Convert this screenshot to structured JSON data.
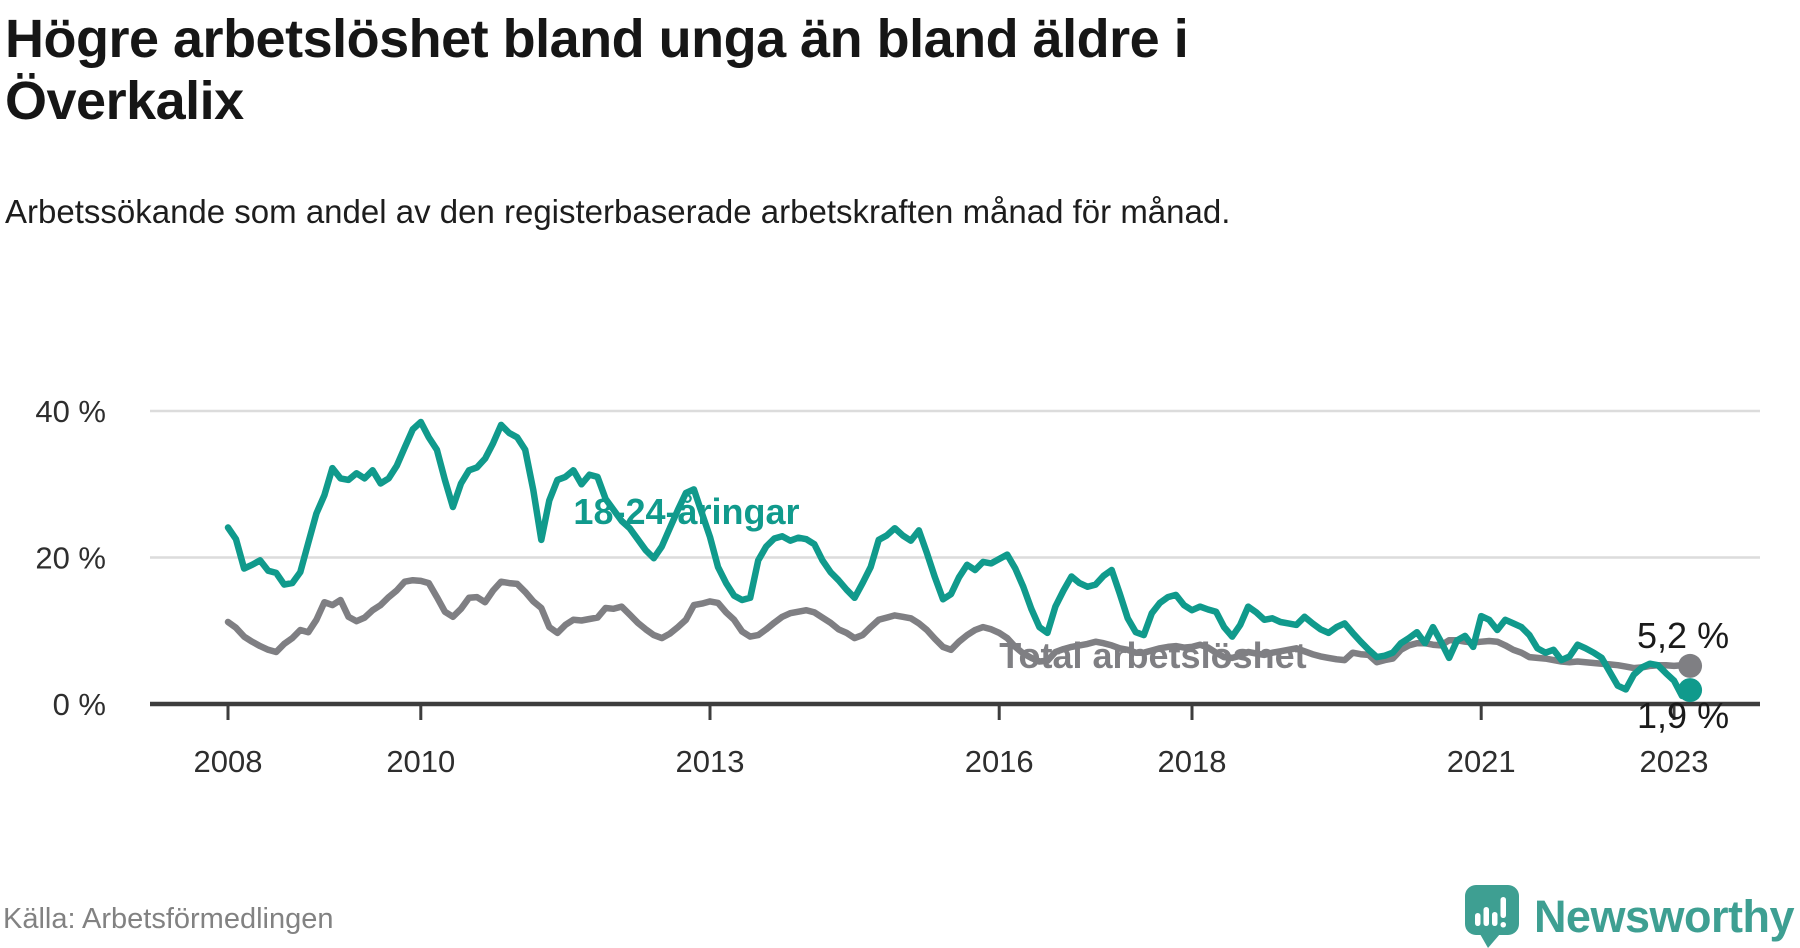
{
  "title": "Högre arbetslöshet bland unga än bland äldre i Överkalix",
  "subtitle": "Arbetssökande som andel av den registerbaserade arbetskraften månad för månad.",
  "source": {
    "text": "Källa: Arbetsförmedlingen"
  },
  "brand": {
    "name": "Newsworthy",
    "color": "#3e9f92"
  },
  "chart_data": {
    "type": "line",
    "unit": "%",
    "frequency": "monthly",
    "x_start": "2008-01",
    "x_end": "2023-03",
    "ylim": [
      0,
      44
    ],
    "grid": "horizontal",
    "legend": "inline-labels",
    "y_axis": {
      "ticks": [
        {
          "value": 40,
          "label": "40 %"
        },
        {
          "value": 20,
          "label": "20 %"
        },
        {
          "value": 0,
          "label": "0 %"
        }
      ]
    },
    "x_axis": {
      "start_year": 2008,
      "ticks": [
        {
          "year": 2008,
          "label": "2008"
        },
        {
          "year": 2010,
          "label": "2010"
        },
        {
          "year": 2013,
          "label": "2013"
        },
        {
          "year": 2016,
          "label": "2016"
        },
        {
          "year": 2018,
          "label": "2018"
        },
        {
          "year": 2021,
          "label": "2021"
        },
        {
          "year": 2023,
          "label": "2023"
        }
      ]
    },
    "series": [
      {
        "id": "18-24",
        "name": "18-24-åringar",
        "color": "#109a8c",
        "end_label": "1,9 %",
        "end_label_dy": 38,
        "values": [
          24.1,
          22.5,
          18.5,
          19.0,
          19.6,
          18.2,
          17.9,
          16.3,
          16.5,
          18.0,
          22.0,
          26.0,
          28.5,
          32.2,
          30.8,
          30.6,
          31.5,
          30.8,
          31.9,
          30.1,
          30.8,
          32.5,
          35.0,
          37.5,
          38.5,
          36.4,
          34.7,
          30.6,
          26.9,
          30.1,
          31.9,
          32.3,
          33.5,
          35.6,
          38.1,
          37.0,
          36.4,
          34.7,
          29.2,
          22.4,
          27.8,
          30.6,
          31.0,
          31.9,
          30.0,
          31.3,
          31.0,
          28.0,
          26.5,
          25.0,
          24.0,
          22.5,
          21.0,
          19.9,
          21.5,
          24.0,
          26.5,
          28.8,
          29.3,
          26.0,
          22.8,
          18.7,
          16.5,
          14.8,
          14.2,
          14.5,
          19.6,
          21.5,
          22.6,
          22.9,
          22.3,
          22.7,
          22.5,
          21.8,
          19.6,
          18.0,
          16.9,
          15.6,
          14.5,
          16.5,
          18.7,
          22.4,
          23.0,
          24.0,
          23.0,
          22.3,
          23.7,
          20.6,
          17.3,
          14.3,
          15.0,
          17.3,
          19.0,
          18.3,
          19.4,
          19.2,
          19.8,
          20.4,
          18.5,
          16.0,
          13.0,
          10.5,
          9.7,
          13.3,
          15.5,
          17.4,
          16.5,
          16.0,
          16.3,
          17.5,
          18.3,
          15.1,
          11.7,
          9.8,
          9.4,
          12.4,
          13.8,
          14.6,
          14.9,
          13.5,
          12.8,
          13.3,
          12.9,
          12.6,
          10.5,
          9.2,
          10.8,
          13.3,
          12.5,
          11.5,
          11.7,
          11.2,
          11.0,
          10.8,
          11.9,
          11.0,
          10.2,
          9.7,
          10.5,
          11.0,
          9.7,
          8.5,
          7.4,
          6.4,
          6.6,
          7.0,
          8.3,
          9.0,
          9.8,
          8.3,
          10.5,
          8.5,
          6.3,
          8.7,
          9.3,
          7.8,
          12.0,
          11.5,
          10.1,
          11.5,
          11.0,
          10.5,
          9.4,
          7.6,
          7.0,
          7.4,
          6.0,
          6.5,
          8.1,
          7.6,
          7.0,
          6.3,
          4.4,
          2.5,
          2.0,
          4.0,
          5.0,
          5.5,
          5.3,
          4.2,
          3.2,
          1.1,
          1.9
        ]
      },
      {
        "id": "total",
        "name": "Total arbetslöshet",
        "color": "#7f7f83",
        "end_label": "5,2 %",
        "end_label_dy": -18,
        "values": [
          11.2,
          10.4,
          9.2,
          8.5,
          7.9,
          7.4,
          7.1,
          8.2,
          9.0,
          10.1,
          9.8,
          11.5,
          13.9,
          13.5,
          14.2,
          11.9,
          11.3,
          11.8,
          12.8,
          13.5,
          14.6,
          15.5,
          16.7,
          16.9,
          16.8,
          16.5,
          14.6,
          12.6,
          11.9,
          13.0,
          14.5,
          14.6,
          13.9,
          15.5,
          16.7,
          16.5,
          16.4,
          15.3,
          14.0,
          13.1,
          10.5,
          9.7,
          10.8,
          11.5,
          11.4,
          11.6,
          11.8,
          13.1,
          13.0,
          13.3,
          12.2,
          11.1,
          10.2,
          9.4,
          9.0,
          9.6,
          10.5,
          11.5,
          13.5,
          13.7,
          14.0,
          13.8,
          12.5,
          11.5,
          9.9,
          9.2,
          9.4,
          10.2,
          11.1,
          11.9,
          12.4,
          12.6,
          12.8,
          12.5,
          11.8,
          11.1,
          10.2,
          9.7,
          9.0,
          9.4,
          10.5,
          11.5,
          11.8,
          12.1,
          11.9,
          11.7,
          11.0,
          10.1,
          8.9,
          7.8,
          7.4,
          8.5,
          9.4,
          10.1,
          10.5,
          10.2,
          9.7,
          9.0,
          7.8,
          6.9,
          6.3,
          5.8,
          5.9,
          7.1,
          7.5,
          7.8,
          8.0,
          8.2,
          8.5,
          8.3,
          8.0,
          7.6,
          7.4,
          7.0,
          7.0,
          7.3,
          7.6,
          7.8,
          7.9,
          7.7,
          7.8,
          8.1,
          7.7,
          7.0,
          6.4,
          6.3,
          6.6,
          7.1,
          6.9,
          6.7,
          7.0,
          7.2,
          7.4,
          7.6,
          7.2,
          6.8,
          6.5,
          6.3,
          6.1,
          6.0,
          7.0,
          6.8,
          6.7,
          5.7,
          6.0,
          6.2,
          7.4,
          8.0,
          8.3,
          8.3,
          8.1,
          8.0,
          8.7,
          8.7,
          8.5,
          8.4,
          8.5,
          8.6,
          8.5,
          8.0,
          7.4,
          7.0,
          6.4,
          6.3,
          6.2,
          6.0,
          5.8,
          5.7,
          5.8,
          5.7,
          5.6,
          5.5,
          5.4,
          5.3,
          5.1,
          4.9,
          5.0,
          5.2,
          5.3,
          5.3,
          5.2,
          5.3,
          5.2
        ]
      }
    ],
    "annotations": [
      {
        "text": "18-24-åringar",
        "month_index": 43,
        "value": 24.6,
        "color": "#109a8c"
      },
      {
        "text": "Total arbetslöshet",
        "month_index": 96,
        "value": 4.9,
        "color": "#7f7f83"
      }
    ]
  }
}
